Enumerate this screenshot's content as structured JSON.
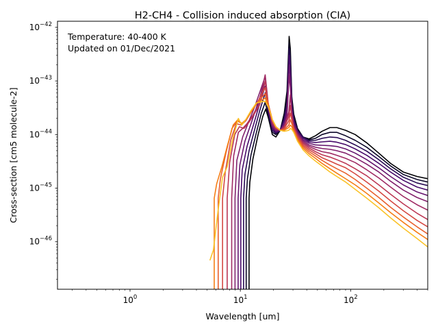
{
  "chart_data": {
    "type": "line",
    "title": "H2-CH4 - Collision induced absorption (CIA)",
    "xlabel": "Wavelength [um]",
    "ylabel": "Cross-section [cm5 molecule-2]",
    "annotation": [
      "Temperature: 40-400 K",
      "Updated on 01/Dec/2021"
    ],
    "x_scale": "log",
    "y_scale": "log",
    "xlim": [
      0.22,
      500
    ],
    "ylim": [
      1.3e-47,
      1.3e-42
    ],
    "x_ticks": [
      {
        "value": 1,
        "base": "10",
        "exp": "0"
      },
      {
        "value": 10,
        "base": "10",
        "exp": "1"
      },
      {
        "value": 100,
        "base": "10",
        "exp": "2"
      }
    ],
    "y_ticks": [
      {
        "value": 1e-46,
        "base": "10",
        "exp": "−46"
      },
      {
        "value": 1e-45,
        "base": "10",
        "exp": "−45"
      },
      {
        "value": 1e-44,
        "base": "10",
        "exp": "−44"
      },
      {
        "value": 1e-43,
        "base": "10",
        "exp": "−43"
      },
      {
        "value": 1e-42,
        "base": "10",
        "exp": "−42"
      }
    ],
    "grid": false,
    "legend": "none",
    "colormap": "inferno (dark = low temperature, yellow = high temperature)",
    "series": [
      {
        "color": "#000004",
        "x": [
          12.0,
          12.0,
          12.2,
          13.0,
          14.5,
          16.0,
          17.0,
          18.0,
          19.5,
          21.0,
          23.0,
          25.0,
          26.5,
          27.7,
          28.4,
          29.3,
          30.5,
          33.0,
          37.0,
          42.0,
          48.0,
          55.0,
          65.0,
          75.0,
          90.0,
          110.0,
          140.0,
          180.0,
          230.0,
          300.0,
          400.0,
          500.0
        ],
        "y": [
          1.3e-47,
          6.5e-46,
          1.3e-45,
          3.5e-45,
          1e-44,
          2.2e-44,
          3e-44,
          2e-44,
          1e-44,
          9e-45,
          1.2e-44,
          2.5e-44,
          6.5e-44,
          6.8e-43,
          4e-43,
          5e-44,
          2.4e-44,
          1.3e-44,
          9e-45,
          8.3e-45,
          9.5e-45,
          1.15e-44,
          1.35e-44,
          1.35e-44,
          1.2e-44,
          1e-44,
          7e-45,
          4.5e-45,
          2.9e-45,
          2e-45,
          1.65e-45,
          1.5e-45
        ]
      },
      {
        "color": "#0d0829",
        "x": [
          11.3,
          11.3,
          11.6,
          12.5,
          14.0,
          15.5,
          16.8,
          18.0,
          19.5,
          21.0,
          23.0,
          25.0,
          26.5,
          27.7,
          28.4,
          29.3,
          30.5,
          33.0,
          37.0,
          42.0,
          48.0,
          55.0,
          65.0,
          75.0,
          90.0,
          110.0,
          140.0,
          180.0,
          230.0,
          300.0,
          400.0,
          500.0
        ],
        "y": [
          1.3e-47,
          6.5e-46,
          1.5e-45,
          4.2e-45,
          1.1e-44,
          2.5e-44,
          4e-44,
          2.2e-44,
          1.1e-44,
          1e-44,
          1.2e-44,
          2.3e-44,
          5e-44,
          5.2e-43,
          3e-43,
          4.3e-44,
          2.2e-44,
          1.25e-44,
          9e-45,
          8e-45,
          8.5e-45,
          1e-44,
          1.1e-44,
          1.1e-44,
          9.5e-45,
          7.8e-45,
          5.8e-45,
          3.9e-45,
          2.6e-45,
          1.8e-45,
          1.45e-45,
          1.3e-45
        ]
      },
      {
        "color": "#280b53",
        "x": [
          10.7,
          10.7,
          11.0,
          12.0,
          13.5,
          15.0,
          16.8,
          18.0,
          19.5,
          21.0,
          23.0,
          25.0,
          26.5,
          27.7,
          28.4,
          29.3,
          30.5,
          33.0,
          37.0,
          42.0,
          48.0,
          55.0,
          65.0,
          75.0,
          90.0,
          110.0,
          140.0,
          180.0,
          230.0,
          300.0,
          400.0,
          500.0
        ],
        "y": [
          1.3e-47,
          6.5e-46,
          1.8e-45,
          5e-45,
          1.25e-44,
          2.8e-44,
          6e-44,
          2.5e-44,
          1.2e-44,
          1.05e-44,
          1.2e-44,
          2e-44,
          4e-44,
          4e-43,
          2.2e-43,
          3.7e-44,
          2e-44,
          1.2e-44,
          9e-45,
          7.7e-45,
          7.8e-45,
          8.5e-45,
          9e-45,
          8.8e-45,
          7.8e-45,
          6.4e-45,
          4.9e-45,
          3.4e-45,
          2.3e-45,
          1.6e-45,
          1.25e-45,
          1.12e-45
        ]
      },
      {
        "color": "#470b6a",
        "x": [
          10.1,
          10.1,
          10.4,
          11.5,
          13.0,
          14.5,
          16.8,
          18.0,
          19.5,
          21.0,
          23.0,
          25.0,
          26.5,
          27.7,
          28.4,
          29.3,
          30.5,
          33.0,
          37.0,
          42.0,
          48.0,
          55.0,
          65.0,
          75.0,
          90.0,
          110.0,
          140.0,
          180.0,
          230.0,
          300.0,
          400.0,
          500.0
        ],
        "y": [
          1.3e-47,
          6.5e-46,
          2.2e-45,
          6e-45,
          1.4e-44,
          3e-44,
          8e-44,
          2.8e-44,
          1.3e-44,
          1.1e-44,
          1.2e-44,
          1.8e-44,
          3.2e-44,
          3e-43,
          1.6e-43,
          3.2e-44,
          1.8e-44,
          1.15e-44,
          8.5e-45,
          7.3e-45,
          7.1e-45,
          7.3e-45,
          7.5e-45,
          7.2e-45,
          6.5e-45,
          5.4e-45,
          4.1e-45,
          2.9e-45,
          2e-45,
          1.4e-45,
          1.05e-45,
          9.2e-46
        ]
      },
      {
        "color": "#65156e",
        "x": [
          9.55,
          9.55,
          9.9,
          11.0,
          12.5,
          14.0,
          16.8,
          18.0,
          19.5,
          21.0,
          23.0,
          25.0,
          26.5,
          27.7,
          28.4,
          29.3,
          30.5,
          33.0,
          37.0,
          42.0,
          48.0,
          55.0,
          65.0,
          75.0,
          90.0,
          110.0,
          140.0,
          180.0,
          230.0,
          300.0,
          400.0,
          500.0
        ],
        "y": [
          1.3e-47,
          6.5e-46,
          2.7e-45,
          7.5e-45,
          1.6e-44,
          3.2e-44,
          1e-43,
          3e-44,
          1.4e-44,
          1.15e-44,
          1.2e-44,
          1.6e-44,
          2.6e-44,
          2e-43,
          1.1e-43,
          2.8e-44,
          1.65e-44,
          1.1e-44,
          8e-45,
          6.9e-45,
          6.4e-45,
          6.3e-45,
          6.2e-45,
          6e-45,
          5.4e-45,
          4.5e-45,
          3.4e-45,
          2.4e-45,
          1.65e-45,
          1.15e-45,
          8.5e-46,
          7.3e-46
        ]
      },
      {
        "color": "#82206c",
        "x": [
          8.95,
          8.95,
          9.3,
          10.5,
          12.0,
          13.5,
          16.8,
          18.0,
          19.5,
          21.0,
          23.0,
          25.0,
          26.5,
          27.7,
          28.4,
          29.3,
          30.5,
          33.0,
          37.0,
          42.0,
          48.0,
          55.0,
          65.0,
          75.0,
          90.0,
          110.0,
          140.0,
          180.0,
          230.0,
          300.0,
          400.0,
          500.0
        ],
        "y": [
          1.3e-47,
          6.5e-46,
          3.3e-45,
          9e-45,
          1.8e-44,
          3.3e-44,
          1.2e-43,
          3.2e-44,
          1.5e-44,
          1.2e-44,
          1.2e-44,
          1.5e-44,
          2.2e-44,
          1.3e-43,
          7.5e-44,
          2.5e-44,
          1.5e-44,
          1.05e-44,
          7.6e-45,
          6.4e-45,
          5.8e-45,
          5.5e-45,
          5.3e-45,
          5e-45,
          4.5e-45,
          3.7e-45,
          2.8e-45,
          2e-45,
          1.35e-45,
          9.2e-46,
          6.7e-46,
          5.6e-46
        ]
      },
      {
        "color": "#9f2a63",
        "x": [
          8.35,
          8.35,
          8.7,
          9.6,
          10.5,
          11.5,
          13.0,
          14.5,
          16.8,
          18.0,
          19.5,
          21.0,
          23.0,
          25.0,
          27.5,
          28.4,
          29.3,
          30.5,
          33.0,
          37.0,
          42.0,
          48.0,
          55.0,
          65.0,
          75.0,
          90.0,
          110.0,
          140.0,
          180.0,
          230.0,
          300.0,
          400.0,
          500.0
        ],
        "y": [
          1.3e-47,
          6.5e-46,
          4e-45,
          1.1e-44,
          1.3e-44,
          1.6e-44,
          2.3e-44,
          3.5e-44,
          1.3e-43,
          3.4e-44,
          1.6e-44,
          1.25e-44,
          1.2e-44,
          1.4e-44,
          2.6e-44,
          5.5e-44,
          2.3e-44,
          1.4e-44,
          1e-44,
          7.2e-45,
          6e-45,
          5.3e-45,
          4.8e-45,
          4.5e-45,
          4.1e-45,
          3.6e-45,
          3e-45,
          2.2e-45,
          1.55e-45,
          1.05e-45,
          7e-46,
          4.9e-46,
          3.9e-46
        ]
      },
      {
        "color": "#bc3754",
        "x": [
          7.6,
          7.6,
          8.0,
          8.9,
          9.8,
          10.8,
          12.0,
          13.5,
          15.0,
          16.8,
          18.0,
          19.5,
          21.0,
          23.0,
          25.0,
          27.5,
          28.4,
          29.3,
          30.5,
          33.0,
          37.0,
          42.0,
          48.0,
          55.0,
          65.0,
          75.0,
          90.0,
          110.0,
          140.0,
          180.0,
          230.0,
          300.0,
          400.0,
          500.0
        ],
        "y": [
          1.3e-47,
          6.5e-46,
          3e-45,
          1e-44,
          1.4e-44,
          1.3e-44,
          1.7e-44,
          2.5e-44,
          3.6e-44,
          1e-43,
          3.5e-44,
          1.7e-44,
          1.3e-44,
          1.2e-44,
          1.35e-44,
          2.2e-44,
          3.5e-44,
          2.1e-44,
          1.35e-44,
          9.5e-45,
          6.8e-45,
          5.6e-45,
          4.8e-45,
          4.2e-45,
          3.8e-45,
          3.4e-45,
          2.9e-45,
          2.3e-45,
          1.7e-45,
          1.15e-45,
          7.7e-46,
          5.1e-46,
          3.4e-46,
          2.6e-46
        ]
      },
      {
        "color": "#d44842",
        "x": [
          6.9,
          6.9,
          7.3,
          8.2,
          9.2,
          10.2,
          11.2,
          12.5,
          14.0,
          16.8,
          18.0,
          19.5,
          21.0,
          23.0,
          25.0,
          27.5,
          28.4,
          29.3,
          30.5,
          33.0,
          37.0,
          42.0,
          48.0,
          55.0,
          65.0,
          75.0,
          90.0,
          110.0,
          140.0,
          180.0,
          230.0,
          300.0,
          400.0,
          500.0
        ],
        "y": [
          1.3e-47,
          6.5e-46,
          2e-45,
          8e-45,
          1.6e-44,
          1.5e-44,
          1.8e-44,
          2.6e-44,
          3.7e-44,
          7.5e-44,
          3.6e-44,
          1.8e-44,
          1.35e-44,
          1.2e-44,
          1.3e-44,
          1.8e-44,
          2.5e-44,
          1.9e-44,
          1.3e-44,
          9e-45,
          6.4e-45,
          5.2e-45,
          4.4e-45,
          3.7e-45,
          3.2e-45,
          2.8e-45,
          2.4e-45,
          1.85e-45,
          1.3e-45,
          8.8e-46,
          5.8e-46,
          3.8e-46,
          2.5e-46,
          1.9e-46
        ]
      },
      {
        "color": "#e8602d",
        "x": [
          6.3,
          6.3,
          6.6,
          7.4,
          8.4,
          9.4,
          10.3,
          11.3,
          12.5,
          14.0,
          16.8,
          18.0,
          19.5,
          21.0,
          23.0,
          25.0,
          27.5,
          28.4,
          29.3,
          30.5,
          33.0,
          37.0,
          42.0,
          48.0,
          55.0,
          65.0,
          75.0,
          90.0,
          110.0,
          140.0,
          180.0,
          230.0,
          300.0,
          400.0,
          500.0
        ],
        "y": [
          1.3e-47,
          6.5e-46,
          1.5e-45,
          4.5e-45,
          1.3e-44,
          1.8e-44,
          1.6e-44,
          1.9e-44,
          2.6e-44,
          3.8e-44,
          5.8e-44,
          3.6e-44,
          1.9e-44,
          1.4e-44,
          1.2e-44,
          1.25e-44,
          1.5e-44,
          1.9e-44,
          1.6e-44,
          1.25e-44,
          8.5e-45,
          6e-45,
          4.8e-45,
          4e-45,
          3.3e-45,
          2.7e-45,
          2.3e-45,
          1.9e-45,
          1.45e-45,
          1e-45,
          6.7e-46,
          4.4e-46,
          2.9e-46,
          1.9e-46,
          1.4e-46
        ]
      },
      {
        "color": "#f57d15",
        "x": [
          5.8,
          5.8,
          6.1,
          6.8,
          7.6,
          8.6,
          9.5,
          10.3,
          11.2,
          12.5,
          14.0,
          16.8,
          18.0,
          19.5,
          21.0,
          23.0,
          25.0,
          27.5,
          28.4,
          29.3,
          30.5,
          33.0,
          37.0,
          42.0,
          48.0,
          55.0,
          65.0,
          75.0,
          90.0,
          110.0,
          140.0,
          180.0,
          230.0,
          300.0,
          400.0,
          500.0
        ],
        "y": [
          1.3e-47,
          6.5e-46,
          1.2e-45,
          2.5e-45,
          6e-45,
          1.5e-44,
          1.9e-44,
          1.6e-44,
          1.9e-44,
          2.7e-44,
          3.8e-44,
          4.8e-44,
          3.4e-44,
          1.9e-44,
          1.4e-44,
          1.2e-44,
          1.2e-44,
          1.35e-44,
          1.5e-44,
          1.4e-44,
          1.15e-44,
          8e-45,
          5.6e-45,
          4.4e-45,
          3.6e-45,
          2.9e-45,
          2.3e-45,
          1.9e-45,
          1.5e-45,
          1.15e-45,
          8e-46,
          5.3e-46,
          3.5e-46,
          2.3e-46,
          1.5e-46,
          1.1e-46
        ]
      },
      {
        "color": "#fac228",
        "x": [
          5.3,
          5.7,
          6.3,
          6.9,
          7.6,
          8.5,
          9.6,
          10.3,
          11.2,
          12.5,
          14.0,
          16.8,
          18.0,
          19.5,
          21.0,
          23.0,
          25.0,
          27.5,
          28.4,
          29.3,
          30.5,
          33.0,
          37.0,
          42.0,
          48.0,
          55.0,
          65.0,
          75.0,
          90.0,
          110.0,
          140.0,
          180.0,
          230.0,
          300.0,
          400.0,
          500.0
        ],
        "y": [
          4.5e-47,
          7e-47,
          4e-46,
          1.6e-45,
          2.5e-45,
          8e-45,
          2e-44,
          1.5e-44,
          1.9e-44,
          2.8e-44,
          3.9e-44,
          4.2e-44,
          3.2e-44,
          1.9e-44,
          1.4e-44,
          1.2e-44,
          1.15e-44,
          1.2e-44,
          1.3e-44,
          1.25e-44,
          1.1e-44,
          7.5e-45,
          5.2e-45,
          4e-45,
          3.2e-45,
          2.6e-45,
          2e-45,
          1.65e-45,
          1.3e-45,
          9.5e-46,
          6.5e-46,
          4.3e-46,
          2.8e-46,
          1.8e-46,
          1.15e-46,
          8e-47
        ]
      }
    ]
  }
}
